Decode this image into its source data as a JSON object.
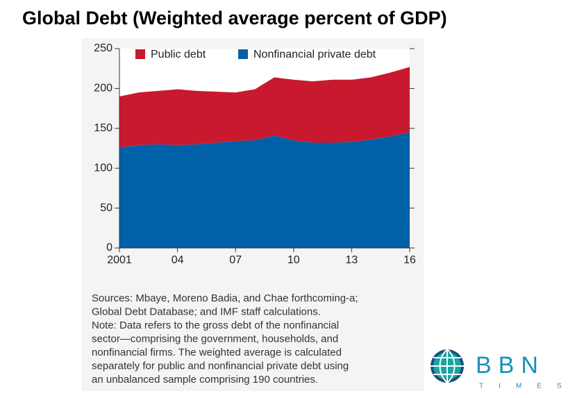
{
  "chart_data": {
    "type": "area",
    "stacked": true,
    "title": "Global Debt (Weighted average percent of GDP)",
    "x": [
      2001,
      2002,
      2003,
      2004,
      2005,
      2006,
      2007,
      2008,
      2009,
      2010,
      2011,
      2012,
      2013,
      2014,
      2015,
      2016
    ],
    "series": [
      {
        "name": "Public debt",
        "color": "#c8192e",
        "values": [
          64,
          66,
          67,
          70,
          67,
          64,
          61,
          64,
          73,
          76,
          77,
          79,
          78,
          78,
          80,
          82
        ]
      },
      {
        "name": "Nonfinancial private debt",
        "color": "#0061a9",
        "values": [
          126,
          129,
          130,
          129,
          130,
          132,
          134,
          135,
          141,
          135,
          132,
          132,
          133,
          136,
          140,
          145
        ]
      }
    ],
    "xlim": [
      2001,
      2016
    ],
    "xticks": [
      2001,
      {
        "value": 2004,
        "label": "04"
      },
      {
        "value": 2007,
        "label": "07"
      },
      {
        "value": 2010,
        "label": "10"
      },
      {
        "value": 2013,
        "label": "13"
      },
      {
        "value": 2016,
        "label": "16"
      }
    ],
    "ylim": [
      0,
      250
    ],
    "yticks": [
      0,
      50,
      100,
      150,
      200,
      250
    ],
    "notes": [
      "Sources: Mbaye, Moreno Badia, and Chae forthcoming-a;",
      "Global Debt Database; and IMF staff calculations.",
      "Note: Data refers to the gross debt of the nonfinancial",
      "sector—comprising the government, households, and",
      "nonfinancial firms. The weighted average is calculated",
      "separately for public and nonfinancial private debt using",
      "an unbalanced sample comprising 190 countries."
    ],
    "logo": {
      "name": "BBN",
      "tagline": "TIMES"
    }
  }
}
